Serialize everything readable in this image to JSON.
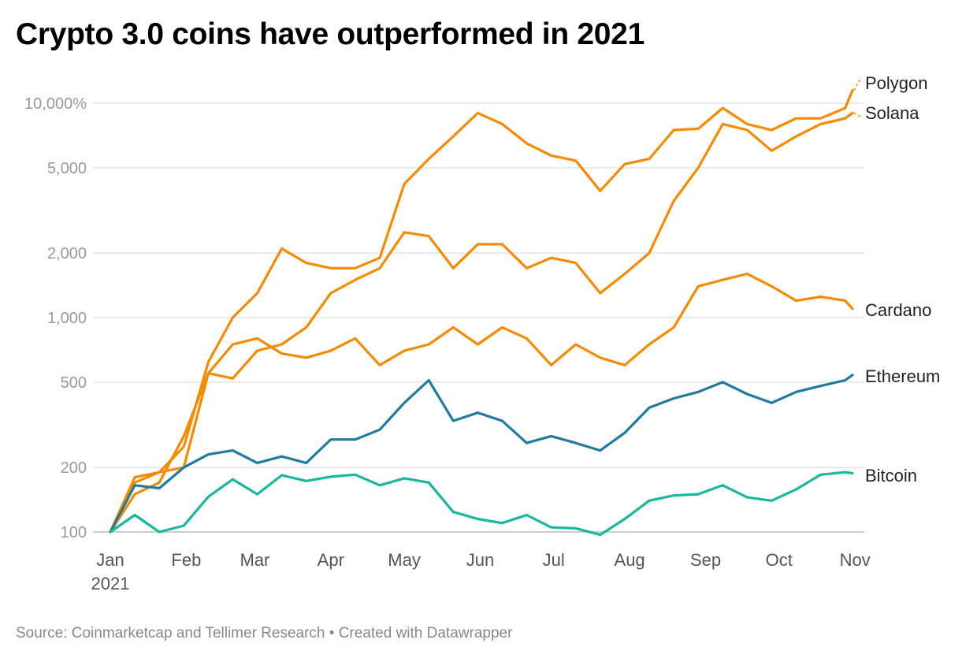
{
  "chart_data": {
    "type": "line",
    "title": "Crypto 3.0 coins have outperformed in 2021",
    "footer": "Source: Coinmarketcap and Tellimer Research • Created with Datawrapper",
    "y_scale": "log",
    "ylim": [
      100,
      10000
    ],
    "y_ticks": [
      {
        "value": 100,
        "label": "100"
      },
      {
        "value": 200,
        "label": "200"
      },
      {
        "value": 500,
        "label": "500"
      },
      {
        "value": 1000,
        "label": "1,000"
      },
      {
        "value": 2000,
        "label": "2,000"
      },
      {
        "value": 5000,
        "label": "5,000"
      },
      {
        "value": 10000,
        "label": "10,000%"
      }
    ],
    "x_ticks": [
      {
        "date": "2021-01-01",
        "label": "Jan",
        "sublabel": "2021"
      },
      {
        "date": "2021-02-01",
        "label": "Feb"
      },
      {
        "date": "2021-03-01",
        "label": "Mar"
      },
      {
        "date": "2021-04-01",
        "label": "Apr"
      },
      {
        "date": "2021-05-01",
        "label": "May"
      },
      {
        "date": "2021-06-01",
        "label": "Jun"
      },
      {
        "date": "2021-07-01",
        "label": "Jul"
      },
      {
        "date": "2021-08-01",
        "label": "Aug"
      },
      {
        "date": "2021-09-01",
        "label": "Sep"
      },
      {
        "date": "2021-10-01",
        "label": "Oct"
      },
      {
        "date": "2021-11-01",
        "label": "Nov"
      }
    ],
    "grid": true,
    "x": [
      "2021-01-01",
      "2021-01-11",
      "2021-01-21",
      "2021-01-31",
      "2021-02-10",
      "2021-02-20",
      "2021-03-02",
      "2021-03-12",
      "2021-03-22",
      "2021-04-01",
      "2021-04-11",
      "2021-04-21",
      "2021-05-01",
      "2021-05-11",
      "2021-05-21",
      "2021-05-31",
      "2021-06-10",
      "2021-06-20",
      "2021-06-30",
      "2021-07-10",
      "2021-07-20",
      "2021-07-30",
      "2021-08-09",
      "2021-08-19",
      "2021-08-29",
      "2021-09-08",
      "2021-09-18",
      "2021-09-28",
      "2021-10-08",
      "2021-10-18",
      "2021-10-28",
      "2021-10-31"
    ],
    "series": [
      {
        "name": "Polygon",
        "color": "#f68b02",
        "values": [
          100,
          180,
          190,
          250,
          620,
          1000,
          1300,
          2100,
          1800,
          1700,
          1700,
          1900,
          4200,
          5500,
          7000,
          9000,
          8000,
          6500,
          5700,
          5400,
          3900,
          5200,
          5500,
          7500,
          7600,
          9500,
          8000,
          7500,
          8500,
          8500,
          9500,
          11500
        ]
      },
      {
        "name": "Solana",
        "color": "#f68b02",
        "values": [
          100,
          150,
          170,
          280,
          550,
          520,
          700,
          750,
          900,
          1300,
          1500,
          1700,
          2500,
          2400,
          1700,
          2200,
          2200,
          1700,
          1900,
          1800,
          1300,
          1600,
          2000,
          3500,
          5000,
          8000,
          7500,
          6000,
          7000,
          8000,
          8500,
          9000
        ]
      },
      {
        "name": "Cardano",
        "color": "#f68b02",
        "values": [
          100,
          170,
          190,
          200,
          550,
          750,
          800,
          680,
          650,
          700,
          800,
          600,
          700,
          750,
          900,
          750,
          900,
          800,
          600,
          750,
          650,
          600,
          750,
          900,
          1400,
          1500,
          1600,
          1400,
          1200,
          1250,
          1200,
          1100
        ]
      },
      {
        "name": "Ethereum",
        "color": "#1f7ca0",
        "values": [
          100,
          165,
          160,
          200,
          230,
          240,
          210,
          225,
          210,
          270,
          270,
          300,
          400,
          510,
          330,
          360,
          330,
          260,
          280,
          260,
          240,
          290,
          380,
          420,
          450,
          500,
          440,
          400,
          450,
          480,
          510,
          540
        ]
      },
      {
        "name": "Bitcoin",
        "color": "#17b89c",
        "values": [
          100,
          120,
          100,
          107,
          146,
          176,
          150,
          184,
          173,
          181,
          185,
          165,
          178,
          170,
          124,
          115,
          110,
          120,
          105,
          104,
          97,
          115,
          140,
          148,
          150,
          165,
          145,
          140,
          158,
          185,
          190,
          188
        ]
      }
    ]
  }
}
